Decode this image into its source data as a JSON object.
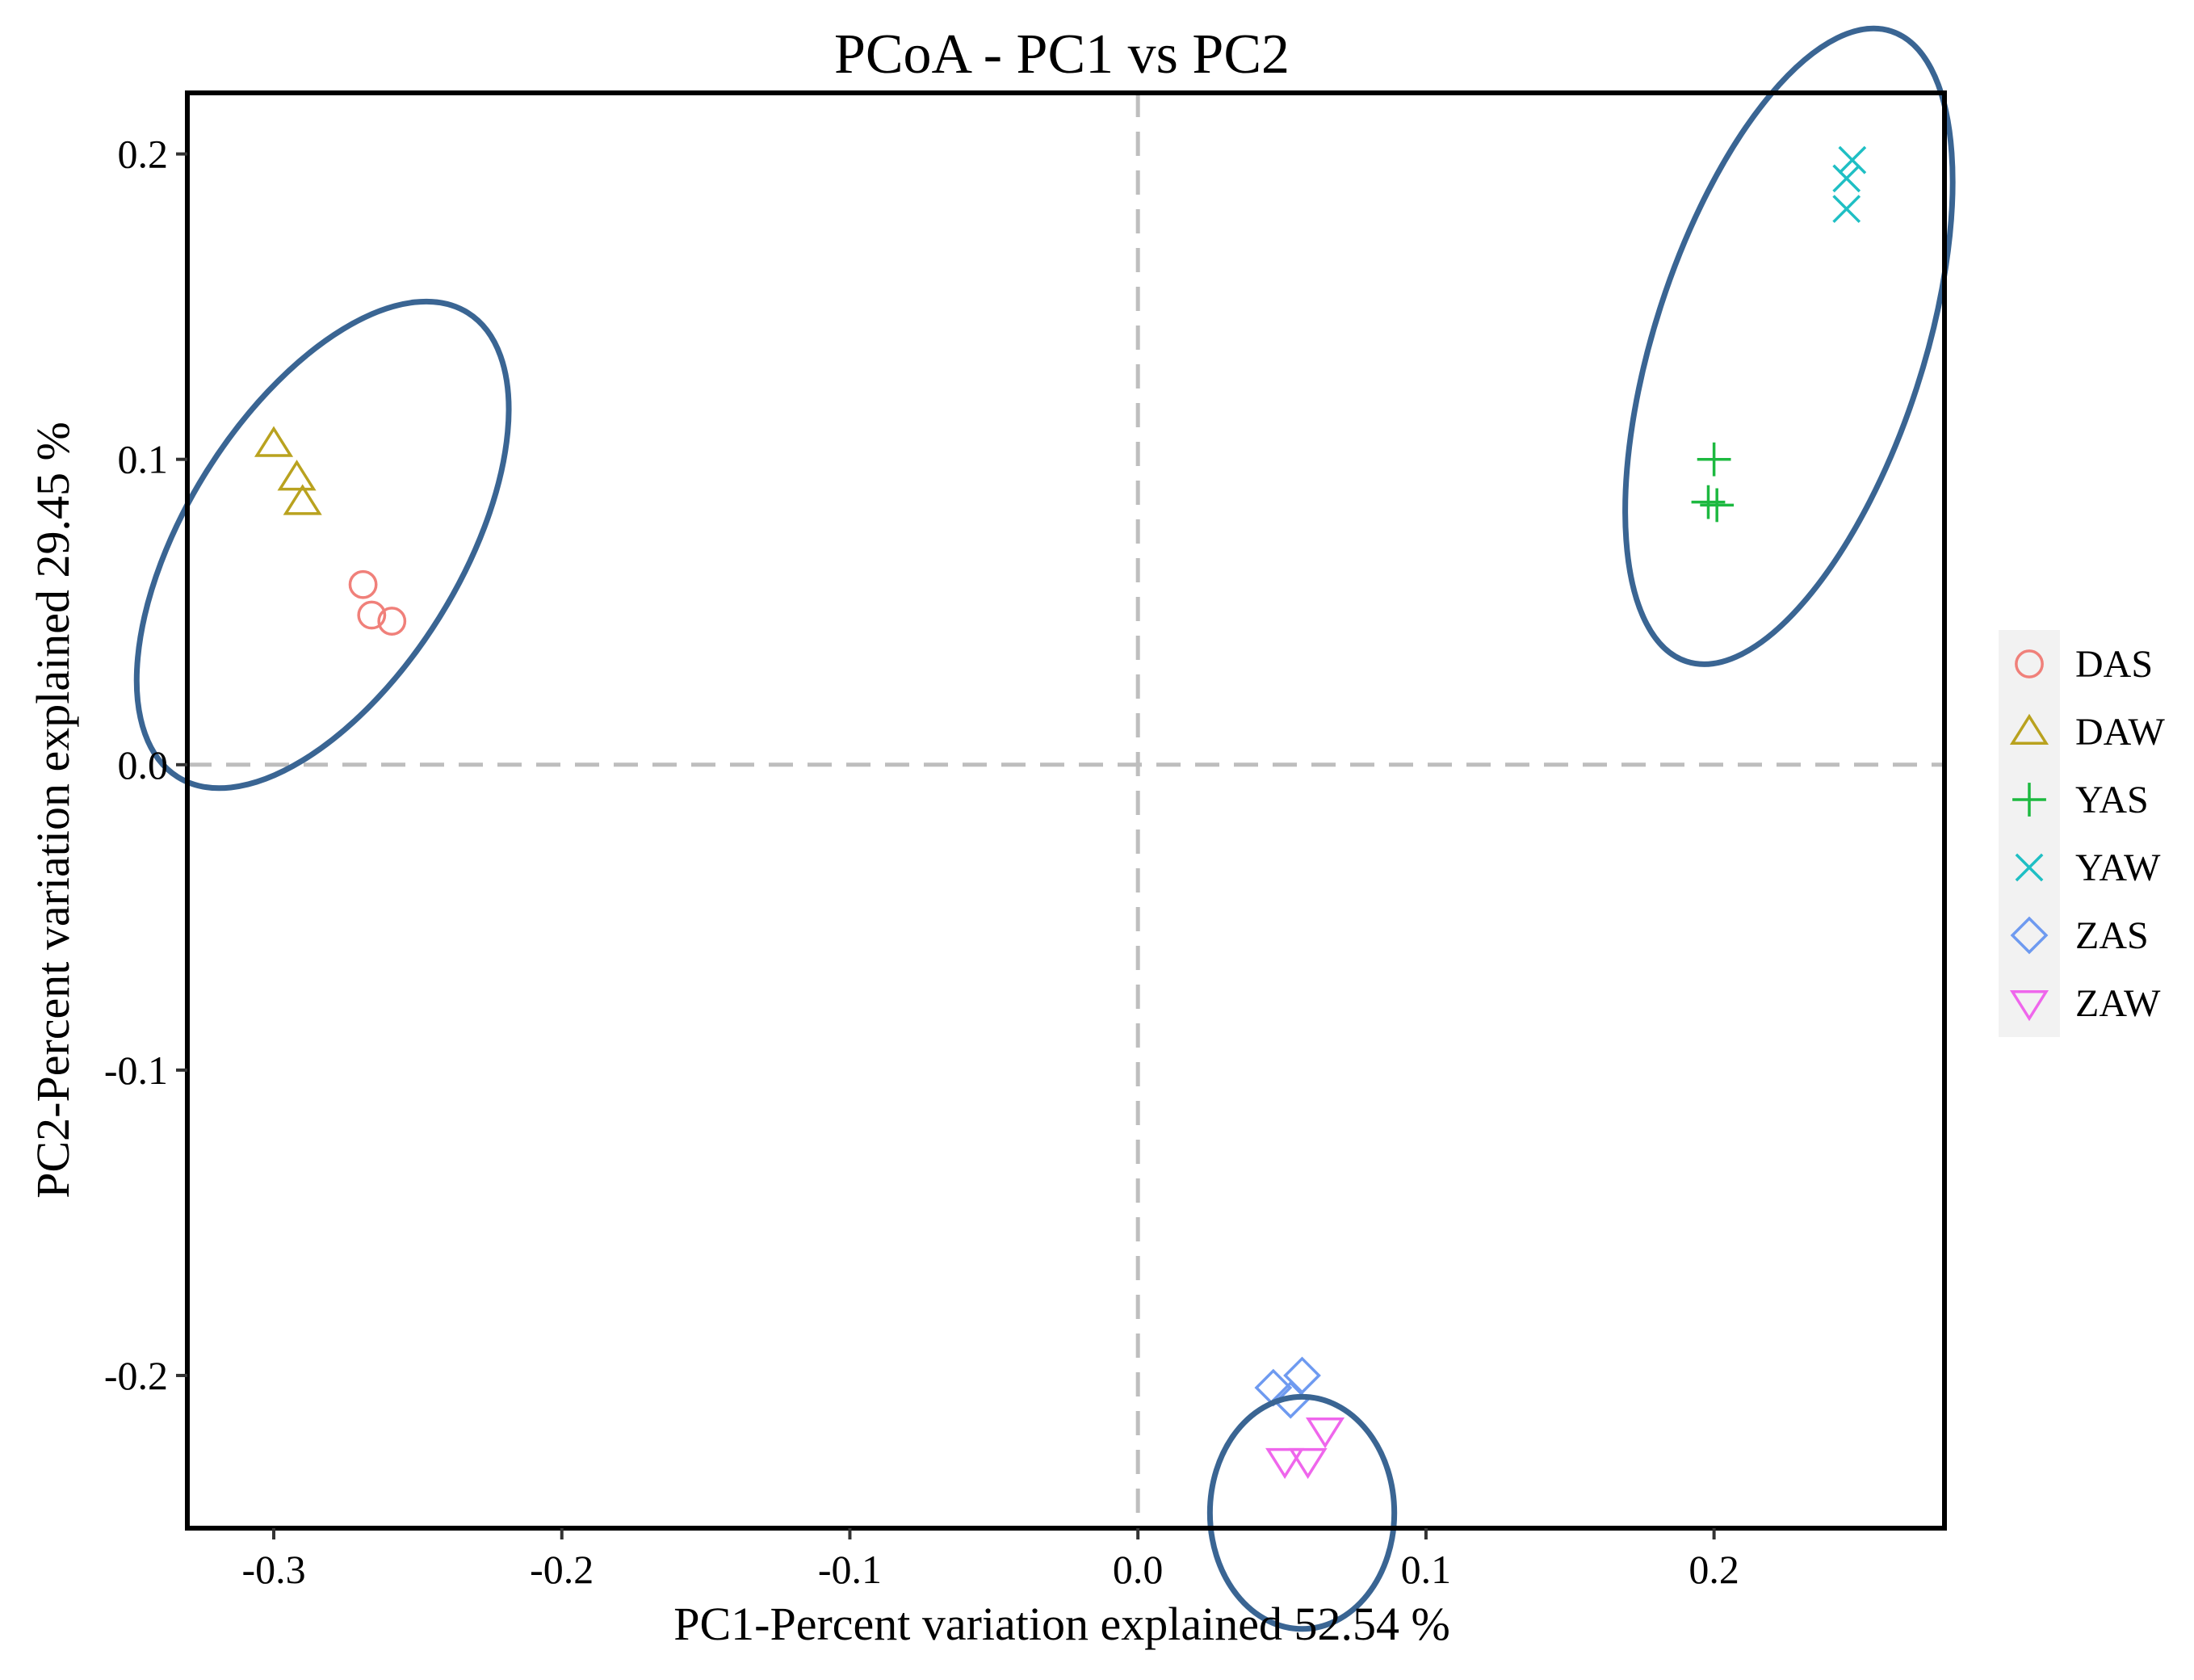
{
  "colors": {
    "DAS": "#F0807A",
    "DAW": "#B9A21F",
    "YAS": "#1DB940",
    "YAW": "#1FBFC4",
    "ZAS": "#6E9AF0",
    "ZAW": "#EF66EC",
    "ellipse": "#3A6593",
    "zero_line": "#BEBEBE",
    "legend_bg": "#F2F2F2"
  },
  "chart_data": {
    "type": "scatter",
    "title": "PCoA - PC1 vs PC2",
    "xlabel": "PC1-Percent variation explained 52.54 %",
    "ylabel": "PC2-Percent variation explained 29.45 %",
    "xlim": [
      -0.33,
      0.28
    ],
    "ylim": [
      -0.25,
      0.22
    ],
    "x_ticks": [
      -0.3,
      -0.2,
      -0.1,
      0.0,
      0.1,
      0.2
    ],
    "x_tick_labels": [
      "-0.3",
      "-0.2",
      "-0.1",
      "0.0",
      "0.1",
      "0.2"
    ],
    "y_ticks": [
      -0.2,
      -0.1,
      0.0,
      0.1,
      0.2
    ],
    "y_tick_labels": [
      "-0.2",
      "-0.1",
      "0.0",
      "0.1",
      "0.2"
    ],
    "grid": false,
    "zero_lines": true,
    "legend_position": "right",
    "series": [
      {
        "name": "DAS",
        "marker": "circle",
        "points": [
          [
            -0.269,
            0.059
          ],
          [
            -0.266,
            0.049
          ],
          [
            -0.259,
            0.047
          ]
        ]
      },
      {
        "name": "DAW",
        "marker": "triangle-up",
        "points": [
          [
            -0.3,
            0.105
          ],
          [
            -0.292,
            0.094
          ],
          [
            -0.29,
            0.086
          ]
        ]
      },
      {
        "name": "YAS",
        "marker": "plus",
        "points": [
          [
            0.2,
            0.1
          ],
          [
            0.198,
            0.086
          ],
          [
            0.201,
            0.085
          ]
        ]
      },
      {
        "name": "YAW",
        "marker": "cross",
        "points": [
          [
            0.248,
            0.198
          ],
          [
            0.246,
            0.192
          ],
          [
            0.246,
            0.182
          ]
        ]
      },
      {
        "name": "ZAS",
        "marker": "diamond",
        "points": [
          [
            0.047,
            -0.204
          ],
          [
            0.057,
            -0.2
          ],
          [
            0.053,
            -0.208
          ]
        ]
      },
      {
        "name": "ZAW",
        "marker": "triangle-down",
        "points": [
          [
            0.051,
            -0.228
          ],
          [
            0.059,
            -0.228
          ],
          [
            0.065,
            -0.218
          ]
        ]
      }
    ],
    "annotations": [
      {
        "type": "ellipse",
        "cx": -0.283,
        "cy": 0.072,
        "rx": 0.095,
        "ry": 0.045,
        "angle_deg": -58
      },
      {
        "type": "ellipse",
        "cx": 0.226,
        "cy": 0.137,
        "rx": 0.115,
        "ry": 0.044,
        "angle_deg": -72
      },
      {
        "type": "ellipse",
        "cx": 0.057,
        "cy": -0.245,
        "rx": 0.032,
        "ry": 0.038,
        "angle_deg": 0
      }
    ]
  }
}
